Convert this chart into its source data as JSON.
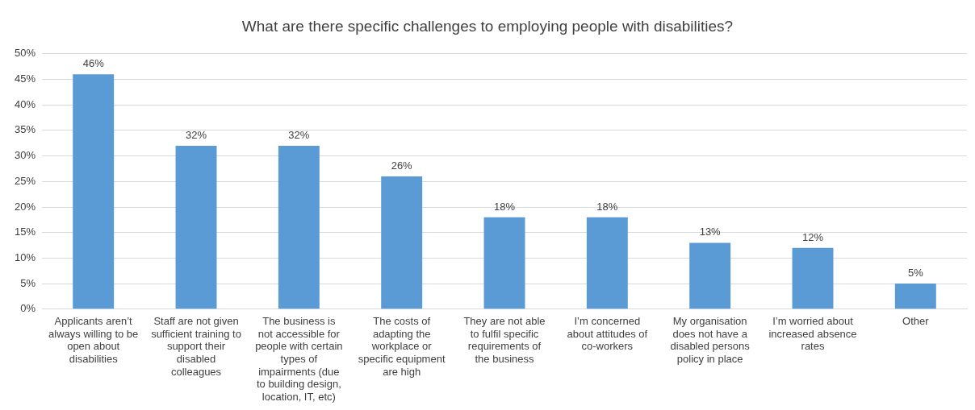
{
  "chart_data": {
    "type": "bar",
    "title": "What are there specific challenges to employing people with disabilities?",
    "categories": [
      "Applicants aren’t always willing to be open about disabilities",
      "Staff are not given sufficient training to support their disabled colleagues",
      "The business is not accessible for people with certain types of impairments (due to building design, location, IT, etc)",
      "The costs of adapting the workplace or specific equipment are high",
      "They are not able to fulfil specific requirements of the business",
      "I’m concerned about attitudes of co-workers",
      "My organisation does not have a disabled persons policy in place",
      "I’m worried about increased absence rates",
      "Other"
    ],
    "values": [
      46,
      32,
      32,
      26,
      18,
      18,
      13,
      12,
      5
    ],
    "value_labels": [
      "46%",
      "32%",
      "32%",
      "26%",
      "18%",
      "18%",
      "13%",
      "12%",
      "5%"
    ],
    "color": "#5b9bd5",
    "ylim": [
      0,
      50
    ],
    "yticks": [
      {
        "value": 0,
        "label": "0%"
      },
      {
        "value": 5,
        "label": "5%"
      },
      {
        "value": 10,
        "label": "10%"
      },
      {
        "value": 15,
        "label": "15%"
      },
      {
        "value": 20,
        "label": "20%"
      },
      {
        "value": 25,
        "label": "25%"
      },
      {
        "value": 30,
        "label": "30%"
      },
      {
        "value": 35,
        "label": "35%"
      },
      {
        "value": 40,
        "label": "40%"
      },
      {
        "value": 45,
        "label": "45%"
      },
      {
        "value": 50,
        "label": "50%"
      }
    ],
    "grid": "y",
    "legend": false
  }
}
